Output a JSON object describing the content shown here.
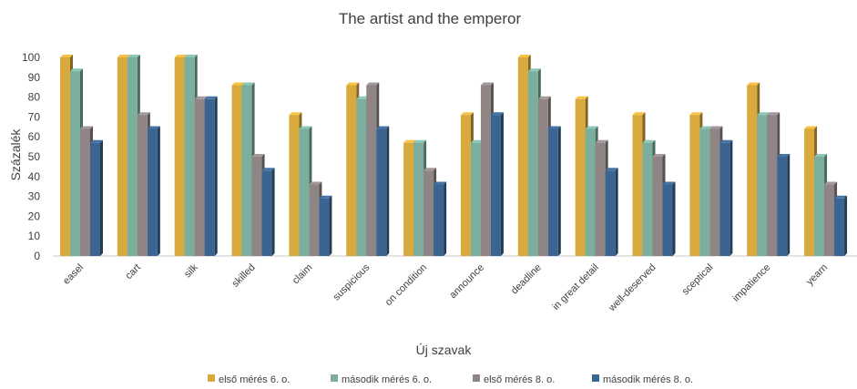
{
  "chart_data": {
    "type": "bar",
    "title": "The artist and the emperor",
    "xlabel": "Új szavak",
    "ylabel": "Százalék",
    "ylim": [
      0,
      100
    ],
    "yticks": [
      0,
      10,
      20,
      30,
      40,
      50,
      60,
      70,
      80,
      90,
      100
    ],
    "grid": false,
    "legend_position": "bottom",
    "categories": [
      "easel",
      "cart",
      "silk",
      "skilled",
      "claim",
      "suspicious",
      "on condition",
      "announce",
      "deadline",
      "in great detail",
      "well-deserved",
      "sceptical",
      "impatience",
      "yearn"
    ],
    "series": [
      {
        "name": "első mérés 6. o.",
        "color": "#D8A93D",
        "values": [
          100,
          100,
          100,
          86,
          71,
          86,
          57,
          71,
          100,
          79,
          71,
          71,
          86,
          64
        ]
      },
      {
        "name": "második mérés 6. o.",
        "color": "#7BAE9D",
        "values": [
          93,
          100,
          100,
          86,
          64,
          79,
          57,
          57,
          93,
          64,
          57,
          64,
          71,
          50
        ]
      },
      {
        "name": "első mérés 8. o.",
        "color": "#8F8585",
        "values": [
          64,
          71,
          79,
          50,
          36,
          86,
          43,
          86,
          79,
          57,
          50,
          64,
          71,
          36
        ]
      },
      {
        "name": "második mérés 8. o.",
        "color": "#3B6590",
        "values": [
          57,
          64,
          79,
          43,
          29,
          64,
          36,
          71,
          64,
          43,
          36,
          57,
          50,
          29
        ]
      }
    ]
  }
}
